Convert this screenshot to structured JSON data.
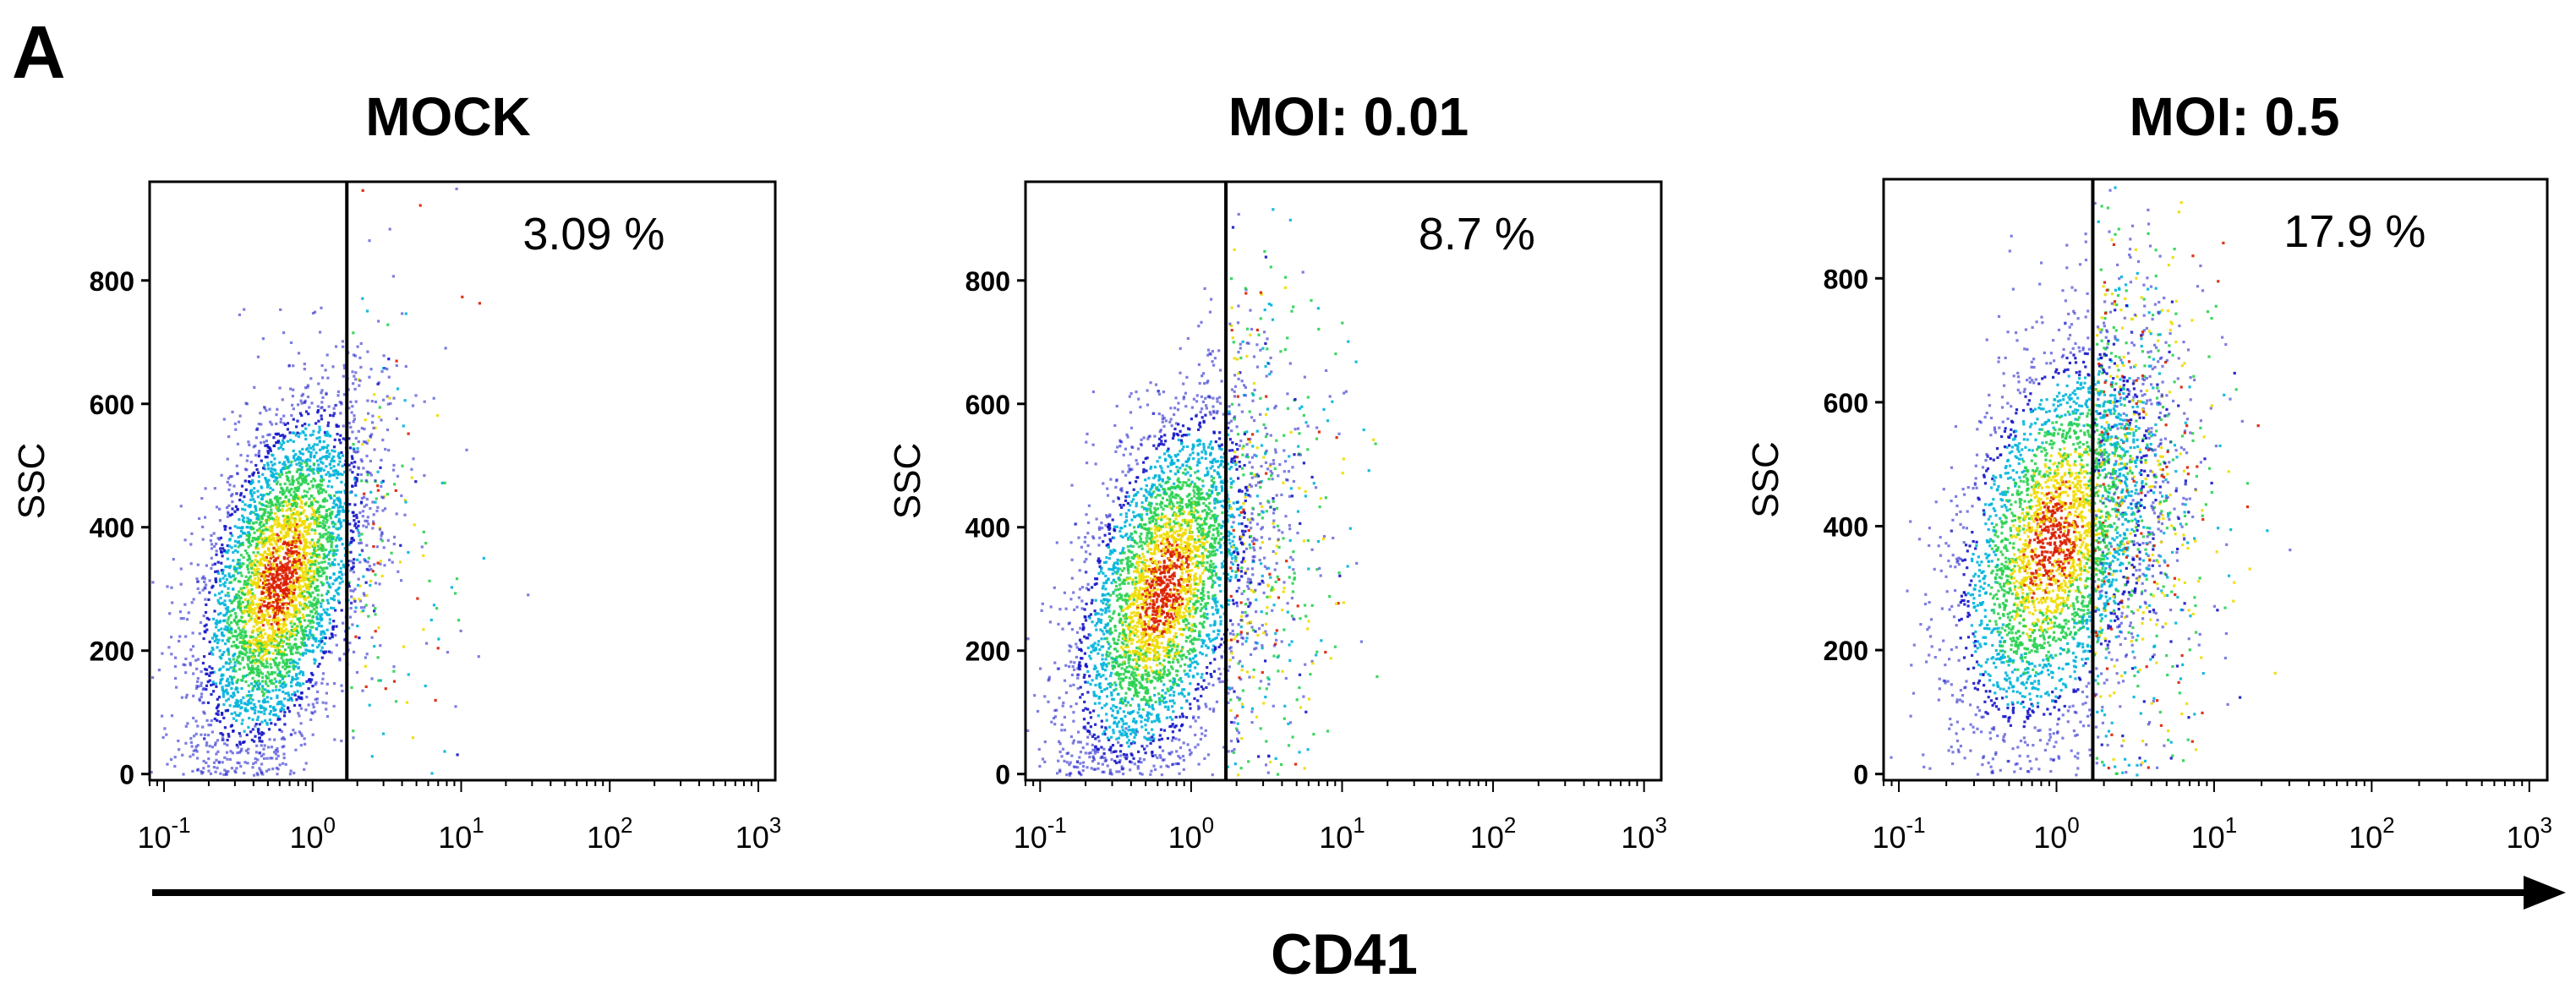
{
  "panel_label": "A",
  "shared_xlabel": "CD41",
  "colors": {
    "axis": "#000000",
    "gate_line": "#000000",
    "density_low": "#1414c8",
    "density_mid_low": "#00b4dc",
    "density_mid": "#28d250",
    "density_mid_high": "#f0dc00",
    "density_high": "#dc1e00"
  },
  "chart_data": [
    {
      "type": "scatter",
      "title": "MOCK",
      "ylabel": "SSC",
      "xlabel": "",
      "xscale": "log",
      "xlim": [
        0.08,
        1300
      ],
      "ylim": [
        -10,
        960
      ],
      "x_ticks": [
        {
          "base": "10",
          "exp": "-1",
          "value": 0.1
        },
        {
          "base": "10",
          "exp": "0",
          "value": 1
        },
        {
          "base": "10",
          "exp": "1",
          "value": 10
        },
        {
          "base": "10",
          "exp": "2",
          "value": 100
        },
        {
          "base": "10",
          "exp": "3",
          "value": 1000
        }
      ],
      "y_ticks": [
        "0",
        "200",
        "400",
        "600",
        "800"
      ],
      "gate_x": 1.7,
      "gate_percent": "3.09  %",
      "population": {
        "center_x": 0.6,
        "center_y": 320,
        "spread_log": 0.28,
        "spread_y": 130,
        "tilt": 0.55,
        "positive_fraction": 0.0309
      },
      "grid": false
    },
    {
      "type": "scatter",
      "title": "MOI: 0.01",
      "ylabel": "SSC",
      "xlabel": "",
      "xscale": "log",
      "xlim": [
        0.08,
        1300
      ],
      "ylim": [
        -10,
        960
      ],
      "x_ticks": [
        {
          "base": "10",
          "exp": "-1",
          "value": 0.1
        },
        {
          "base": "10",
          "exp": "0",
          "value": 1
        },
        {
          "base": "10",
          "exp": "1",
          "value": 10
        },
        {
          "base": "10",
          "exp": "2",
          "value": 100
        },
        {
          "base": "10",
          "exp": "3",
          "value": 1000
        }
      ],
      "y_ticks": [
        "0",
        "200",
        "400",
        "600",
        "800"
      ],
      "gate_x": 1.7,
      "gate_percent": "8.7  %",
      "population": {
        "center_x": 0.65,
        "center_y": 300,
        "spread_log": 0.3,
        "spread_y": 135,
        "tilt": 0.55,
        "positive_fraction": 0.087
      },
      "grid": false
    },
    {
      "type": "scatter",
      "title": "MOI: 0.5",
      "ylabel": "SSC",
      "xlabel": "",
      "xscale": "log",
      "xlim": [
        0.08,
        1300
      ],
      "ylim": [
        -10,
        960
      ],
      "x_ticks": [
        {
          "base": "10",
          "exp": "-1",
          "value": 0.1
        },
        {
          "base": "10",
          "exp": "0",
          "value": 1
        },
        {
          "base": "10",
          "exp": "1",
          "value": 10
        },
        {
          "base": "10",
          "exp": "2",
          "value": 100
        },
        {
          "base": "10",
          "exp": "3",
          "value": 1000
        }
      ],
      "y_ticks": [
        "0",
        "200",
        "400",
        "600",
        "800"
      ],
      "gate_x": 1.7,
      "gate_percent": "17.9  %",
      "population": {
        "center_x": 0.95,
        "center_y": 380,
        "spread_log": 0.32,
        "spread_y": 150,
        "tilt": 0.45,
        "positive_fraction": 0.179
      },
      "grid": false
    }
  ]
}
